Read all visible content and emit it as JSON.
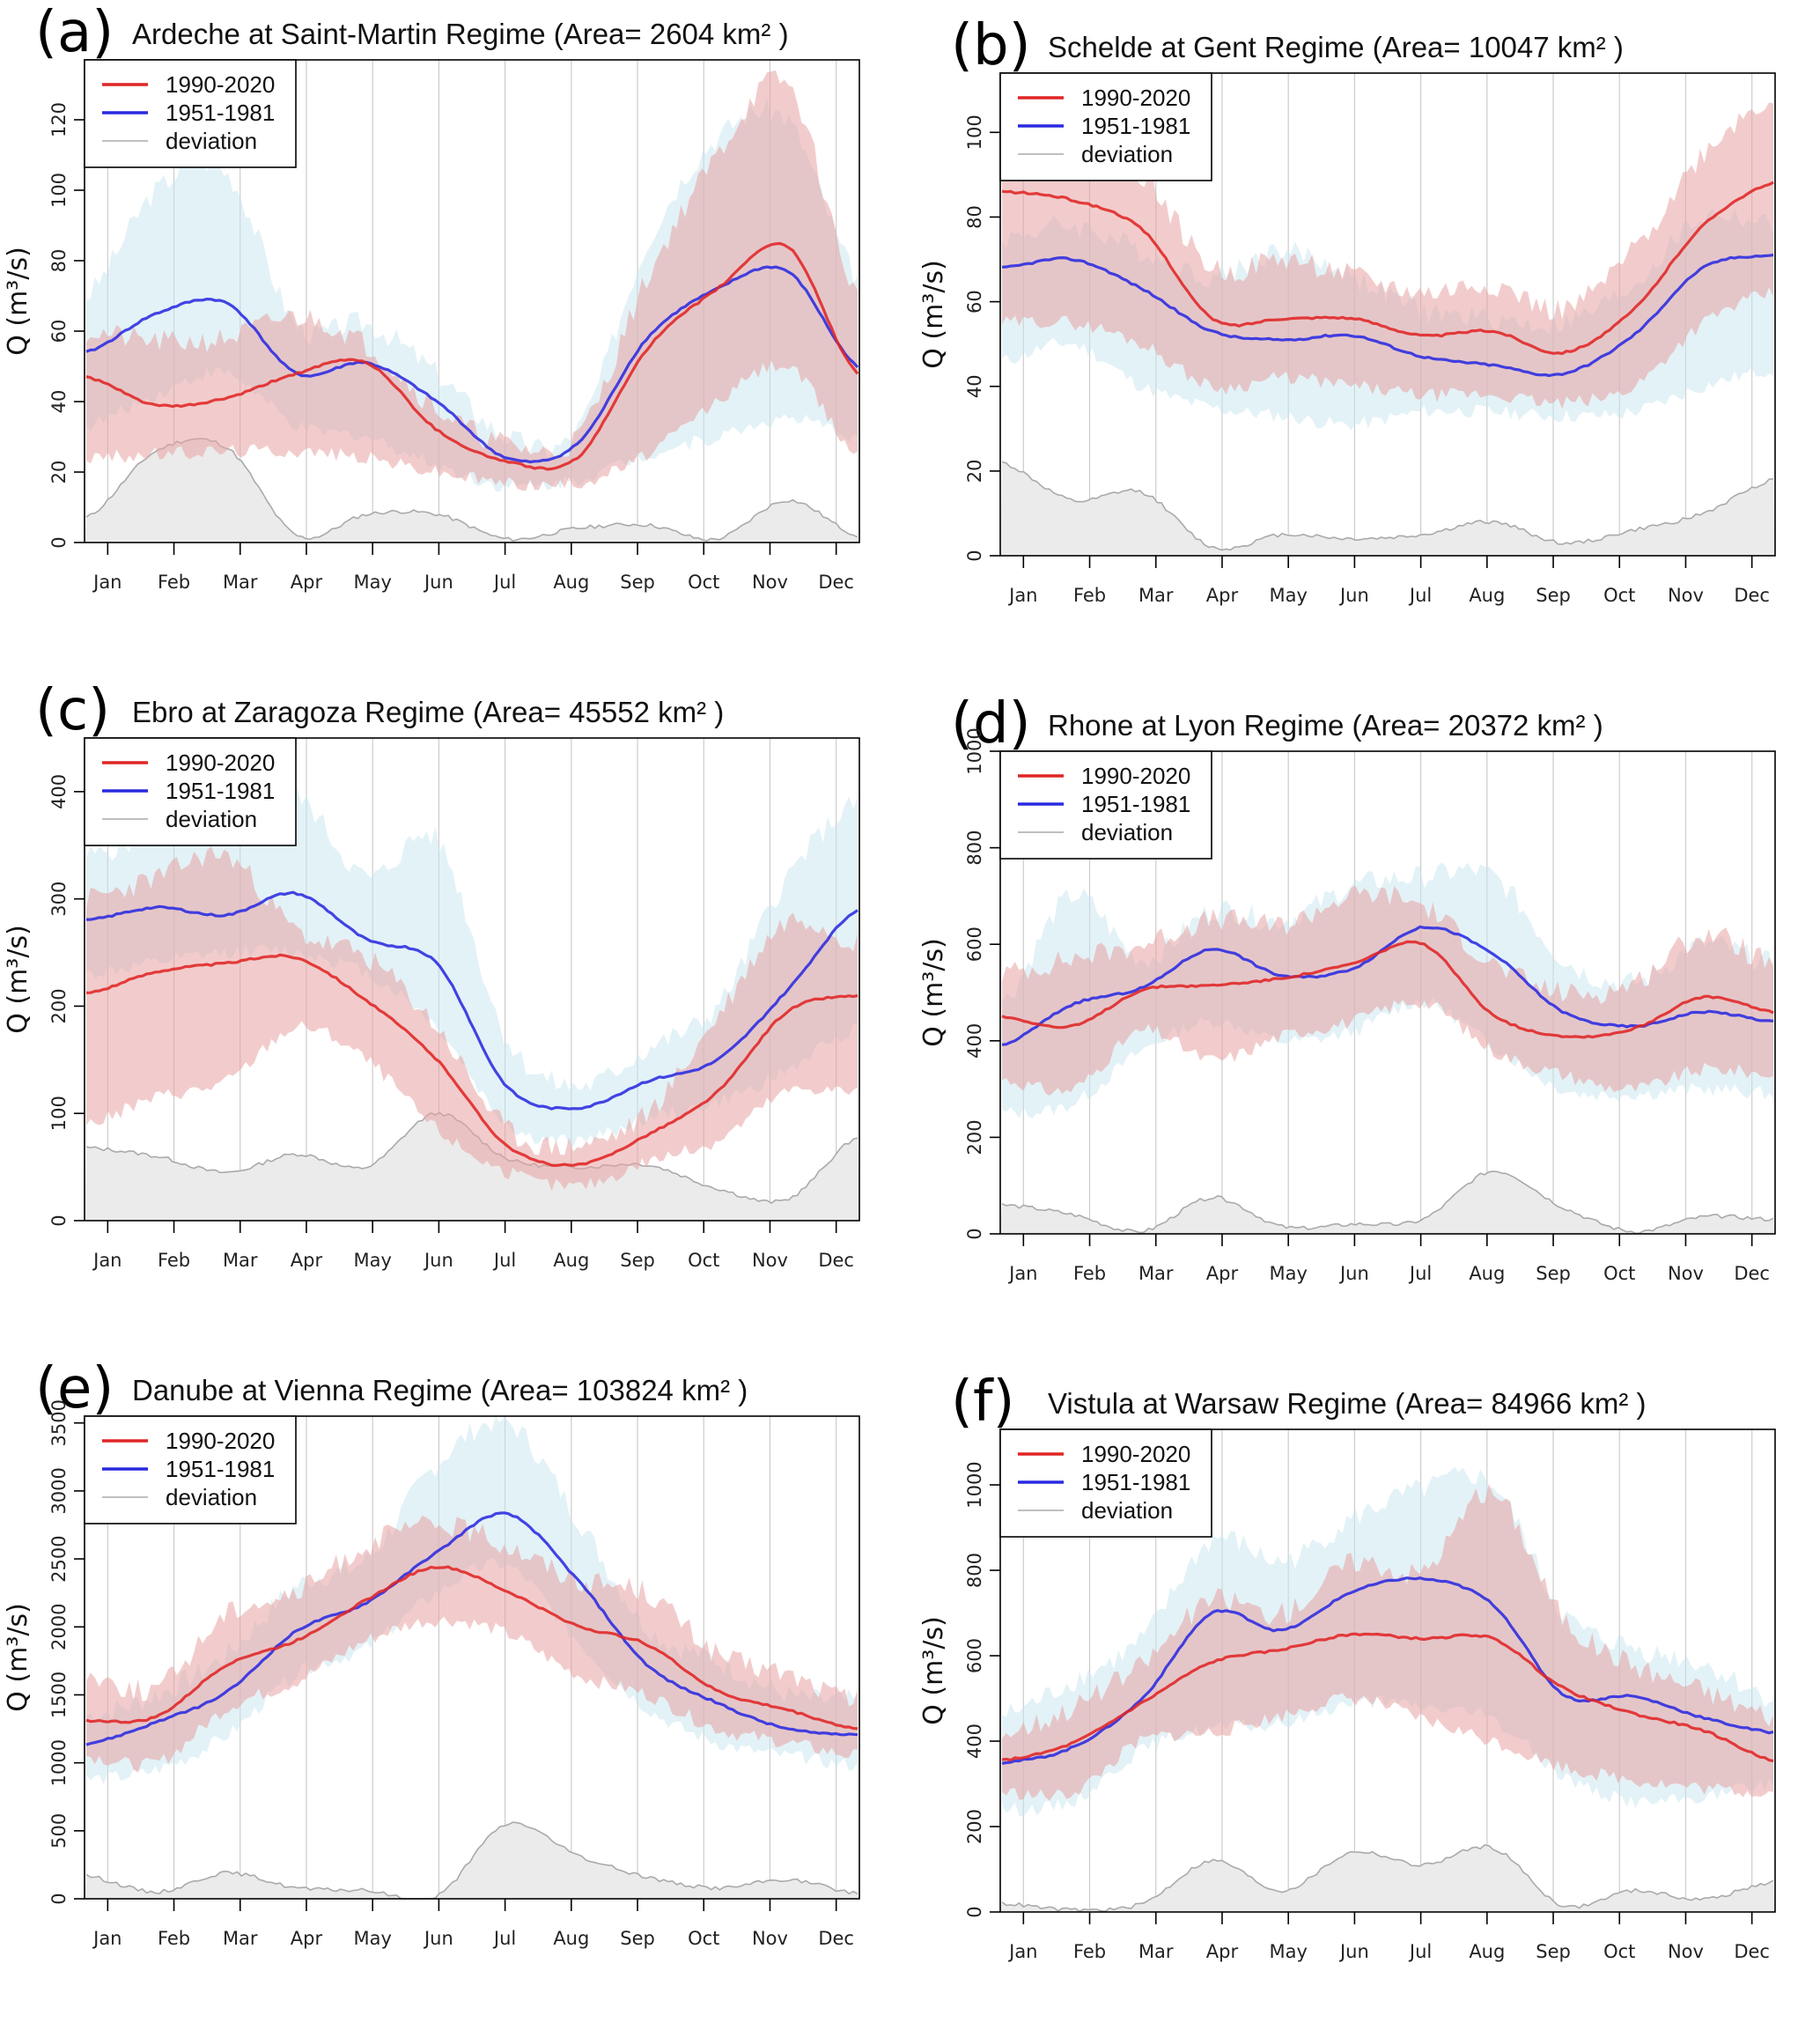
{
  "figure": {
    "legend_labels": [
      "1990-2020",
      "1951-1981",
      "deviation"
    ],
    "months": [
      "Jan",
      "Feb",
      "Mar",
      "Apr",
      "May",
      "Jun",
      "Jul",
      "Aug",
      "Sep",
      "Oct",
      "Nov",
      "Dec"
    ],
    "ylabel": "Q (m³/s)",
    "colors": {
      "recent_line": "#e02525",
      "historic_line": "#2a2ae0",
      "recent_band": "#e8a3a3",
      "historic_band": "#c8e6f0",
      "deviation_fill": "#ebebeb",
      "deviation_line": "#aaaaaa",
      "grid": "#cccccc"
    }
  },
  "chart_data": [
    {
      "type": "line",
      "panel": "(a)",
      "title": "Ardeche at Saint-Martin  Regime (Area= 2604 km² )",
      "xlabel": "",
      "ylabel": "Q (m³/s)",
      "ylim": [
        0,
        137
      ],
      "yticks": [
        0,
        20,
        40,
        60,
        80,
        100,
        120
      ],
      "x": [
        "Jan",
        "Feb",
        "Mar",
        "Apr",
        "May",
        "Jun",
        "Jul",
        "Aug",
        "Sep",
        "Oct",
        "Nov",
        "Dec"
      ],
      "legend": "top-left",
      "grid": "vertical-months",
      "series": [
        {
          "name": "1990-2020",
          "values": [
            47,
            39,
            41,
            48,
            51,
            32,
            23,
            24,
            55,
            72,
            84,
            48
          ],
          "band_low": [
            24,
            25,
            26,
            26,
            24,
            20,
            17,
            17,
            25,
            40,
            50,
            25
          ],
          "band_high": [
            60,
            57,
            58,
            64,
            56,
            38,
            28,
            30,
            75,
            110,
            130,
            70
          ]
        },
        {
          "name": "1951-1981",
          "values": [
            54,
            65,
            68,
            48,
            51,
            40,
            24,
            28,
            58,
            72,
            77,
            50
          ],
          "band_low": [
            33,
            42,
            48,
            33,
            30,
            22,
            16,
            18,
            25,
            30,
            35,
            30
          ],
          "band_high": [
            70,
            100,
            105,
            62,
            62,
            48,
            30,
            32,
            85,
            115,
            120,
            75
          ]
        },
        {
          "name": "deviation",
          "values": [
            7,
            26,
            27,
            2,
            8,
            8,
            1,
            4,
            5,
            1,
            12,
            2
          ]
        }
      ]
    },
    {
      "type": "line",
      "panel": "(b)",
      "title": "Schelde at Gent  Regime (Area= 10047 km² )",
      "xlabel": "",
      "ylabel": "Q (m³/s)",
      "ylim": [
        0,
        114
      ],
      "yticks": [
        0,
        20,
        40,
        60,
        80,
        100
      ],
      "x": [
        "Jan",
        "Feb",
        "Mar",
        "Apr",
        "May",
        "Jun",
        "Jul",
        "Aug",
        "Sep",
        "Oct",
        "Nov",
        "Dec"
      ],
      "legend": "top-left",
      "grid": "vertical-months",
      "series": [
        {
          "name": "1990-2020",
          "values": [
            86,
            84,
            77,
            56,
            56,
            56,
            52,
            53,
            48,
            58,
            78,
            88
          ],
          "band_low": [
            55,
            55,
            50,
            40,
            42,
            40,
            38,
            38,
            36,
            40,
            55,
            62
          ],
          "band_high": [
            110,
            100,
            90,
            68,
            70,
            66,
            62,
            64,
            58,
            72,
            95,
            108
          ]
        },
        {
          "name": "1951-1981",
          "values": [
            68,
            70,
            63,
            53,
            51,
            52,
            47,
            45,
            43,
            52,
            68,
            71
          ],
          "band_low": [
            46,
            50,
            40,
            35,
            33,
            31,
            34,
            34,
            33,
            34,
            40,
            44
          ],
          "band_high": [
            75,
            78,
            72,
            66,
            72,
            66,
            58,
            56,
            55,
            64,
            80,
            78
          ]
        },
        {
          "name": "deviation",
          "values": [
            22,
            13,
            15,
            2,
            5,
            4,
            5,
            8,
            3,
            6,
            10,
            18
          ]
        }
      ]
    },
    {
      "type": "line",
      "panel": "(c)",
      "title": "Ebro at Zaragoza  Regime (Area= 45552 km² )",
      "xlabel": "",
      "ylabel": "Q (m³/s)",
      "ylim": [
        0,
        450
      ],
      "yticks": [
        0,
        100,
        200,
        300,
        400
      ],
      "x": [
        "Jan",
        "Feb",
        "Mar",
        "Apr",
        "May",
        "Jun",
        "Jul",
        "Aug",
        "Sep",
        "Oct",
        "Nov",
        "Dec"
      ],
      "legend": "top-left",
      "grid": "vertical-months",
      "series": [
        {
          "name": "1990-2020",
          "values": [
            212,
            232,
            240,
            245,
            205,
            150,
            70,
            52,
            80,
            120,
            195,
            210
          ],
          "band_low": [
            90,
            115,
            130,
            180,
            150,
            85,
            45,
            32,
            55,
            75,
            120,
            120
          ],
          "band_high": [
            300,
            320,
            340,
            270,
            245,
            180,
            85,
            70,
            100,
            190,
            280,
            260
          ]
        },
        {
          "name": "1951-1981",
          "values": [
            280,
            292,
            285,
            305,
            262,
            240,
            125,
            105,
            130,
            150,
            215,
            290
          ],
          "band_low": [
            230,
            240,
            250,
            250,
            230,
            180,
            90,
            75,
            95,
            110,
            140,
            180
          ],
          "band_high": [
            340,
            360,
            370,
            395,
            320,
            355,
            170,
            125,
            160,
            200,
            320,
            390
          ]
        },
        {
          "name": "deviation",
          "values": [
            68,
            60,
            45,
            62,
            50,
            100,
            58,
            50,
            52,
            30,
            20,
            78
          ]
        }
      ]
    },
    {
      "type": "line",
      "panel": "(d)",
      "title": "Rhone at Lyon  Regime (Area= 20372 km² )",
      "xlabel": "",
      "ylabel": "Q (m³/s)",
      "ylim": [
        0,
        1000
      ],
      "yticks": [
        0,
        200,
        400,
        600,
        800,
        1000
      ],
      "x": [
        "Jan",
        "Feb",
        "Mar",
        "Apr",
        "May",
        "Jun",
        "Jul",
        "Aug",
        "Sep",
        "Oct",
        "Nov",
        "Dec"
      ],
      "legend": "top-left",
      "grid": "vertical-months",
      "series": [
        {
          "name": "1990-2020",
          "values": [
            450,
            430,
            505,
            515,
            530,
            560,
            600,
            455,
            410,
            425,
            490,
            460
          ],
          "band_low": [
            320,
            300,
            420,
            360,
            410,
            440,
            480,
            380,
            330,
            300,
            340,
            330
          ],
          "band_high": [
            540,
            570,
            600,
            650,
            640,
            700,
            680,
            560,
            500,
            520,
            620,
            560
          ]
        },
        {
          "name": "1951-1981",
          "values": [
            390,
            475,
            510,
            590,
            535,
            550,
            635,
            580,
            460,
            430,
            460,
            440
          ],
          "band_low": [
            250,
            270,
            380,
            440,
            400,
            420,
            480,
            390,
            300,
            290,
            300,
            290
          ],
          "band_high": [
            480,
            700,
            570,
            670,
            650,
            720,
            740,
            740,
            570,
            520,
            600,
            560
          ]
        },
        {
          "name": "deviation",
          "values": [
            60,
            40,
            5,
            75,
            15,
            20,
            30,
            130,
            55,
            5,
            35,
            30
          ]
        }
      ]
    },
    {
      "type": "line",
      "panel": "(e)",
      "title": "Danube at Vienna  Regime (Area= 103824 km² )",
      "xlabel": "",
      "ylabel": "Q (m³/s)",
      "ylim": [
        0,
        3550
      ],
      "yticks": [
        0,
        500,
        1000,
        1500,
        2000,
        2500,
        3000,
        3500
      ],
      "x": [
        "Jan",
        "Feb",
        "Mar",
        "Apr",
        "May",
        "Jun",
        "Jul",
        "Aug",
        "Sep",
        "Oct",
        "Nov",
        "Dec"
      ],
      "legend": "top-left",
      "grid": "vertical-months",
      "series": [
        {
          "name": "1990-2020",
          "values": [
            1310,
            1340,
            1720,
            1900,
            2200,
            2440,
            2260,
            2010,
            1870,
            1530,
            1390,
            1250
          ],
          "band_low": [
            1050,
            1000,
            1400,
            1600,
            1900,
            2050,
            1950,
            1650,
            1500,
            1250,
            1150,
            1050
          ],
          "band_high": [
            1650,
            1550,
            2100,
            2250,
            2600,
            2750,
            2600,
            2350,
            2250,
            1800,
            1650,
            1450
          ]
        },
        {
          "name": "1951-1981",
          "values": [
            1140,
            1300,
            1520,
            1970,
            2180,
            2550,
            2830,
            2350,
            1720,
            1440,
            1250,
            1210
          ],
          "band_low": [
            880,
            950,
            1200,
            1650,
            1850,
            2250,
            2450,
            1900,
            1400,
            1150,
            1050,
            980
          ],
          "band_high": [
            1350,
            1500,
            1800,
            2300,
            2500,
            3200,
            3500,
            2800,
            2000,
            1750,
            1500,
            1450
          ]
        },
        {
          "name": "deviation",
          "values": [
            170,
            50,
            190,
            80,
            60,
            20,
            550,
            320,
            160,
            80,
            140,
            40
          ]
        }
      ]
    },
    {
      "type": "line",
      "panel": "(f)",
      "title": "Vistula at Warsaw  Regime (Area= 84966 km² )",
      "xlabel": "",
      "ylabel": "Q (m³/s)",
      "ylim": [
        0,
        1130
      ],
      "yticks": [
        0,
        200,
        400,
        600,
        800,
        1000
      ],
      "x": [
        "Jan",
        "Feb",
        "Mar",
        "Apr",
        "May",
        "Jun",
        "Jul",
        "Aug",
        "Sep",
        "Oct",
        "Nov",
        "Dec"
      ],
      "legend": "top-left",
      "grid": "vertical-months",
      "series": [
        {
          "name": "1990-2020",
          "values": [
            355,
            395,
            490,
            585,
            615,
            650,
            640,
            640,
            525,
            465,
            425,
            355
          ],
          "band_low": [
            280,
            280,
            400,
            420,
            460,
            500,
            450,
            400,
            340,
            310,
            290,
            280
          ],
          "band_high": [
            420,
            480,
            580,
            730,
            700,
            820,
            800,
            980,
            690,
            580,
            520,
            460
          ]
        },
        {
          "name": "1951-1981",
          "values": [
            350,
            385,
            500,
            700,
            660,
            750,
            780,
            720,
            510,
            505,
            455,
            420
          ],
          "band_low": [
            240,
            260,
            380,
            430,
            440,
            490,
            480,
            450,
            320,
            260,
            270,
            300
          ],
          "band_high": [
            460,
            540,
            640,
            870,
            820,
            920,
            990,
            1000,
            700,
            620,
            580,
            500
          ]
        },
        {
          "name": "deviation",
          "values": [
            20,
            5,
            20,
            120,
            50,
            140,
            110,
            150,
            15,
            50,
            30,
            70
          ]
        }
      ]
    }
  ]
}
